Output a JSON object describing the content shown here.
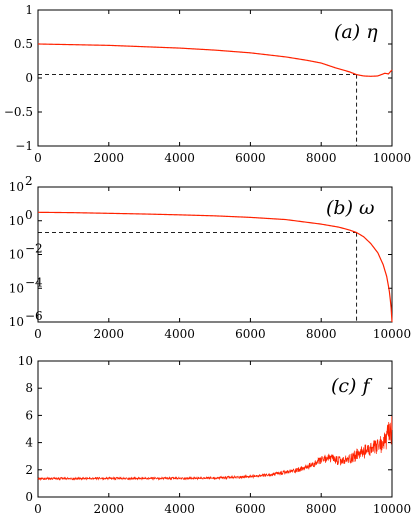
{
  "chart_data": [
    {
      "type": "line",
      "title": "(a) η",
      "xlabel": "",
      "ylabel": "",
      "xlim": [
        0,
        10000
      ],
      "ylim": [
        -1,
        1
      ],
      "xticks": [
        "0",
        "2000",
        "4000",
        "6000",
        "8000",
        "10000"
      ],
      "yticks": [
        "−1",
        "−0.5",
        "0",
        "0.5",
        "1"
      ],
      "line_color": "#ff2200",
      "series": [
        {
          "x": [
            0,
            1000,
            2000,
            3000,
            4000,
            5000,
            6000,
            7000,
            7600,
            8000,
            8400,
            8800,
            9000,
            9200,
            9400,
            9600,
            9700,
            9800,
            9900,
            10000
          ],
          "y": [
            0.5,
            0.49,
            0.48,
            0.46,
            0.44,
            0.41,
            0.37,
            0.31,
            0.26,
            0.22,
            0.15,
            0.09,
            0.05,
            0.03,
            0.025,
            0.03,
            0.05,
            0.07,
            0.06,
            0.12
          ]
        }
      ],
      "guide": {
        "x": 9000,
        "y": 0.05
      }
    },
    {
      "type": "line",
      "title": "(b) ω",
      "xlabel": "",
      "ylabel": "",
      "xlim": [
        0,
        10000
      ],
      "ylim": [
        -6,
        2
      ],
      "yscale": "log",
      "xticks": [
        "0",
        "2000",
        "4000",
        "6000",
        "8000",
        "10000"
      ],
      "yticks": [
        "10^-6",
        "10^-4",
        "10^-2",
        "10^0",
        "10^2"
      ],
      "line_color": "#ff2200",
      "series": [
        {
          "x": [
            0,
            1000,
            2000,
            3000,
            4000,
            5000,
            6000,
            7000,
            8000,
            8500,
            8800,
            9000,
            9200,
            9400,
            9600,
            9750,
            9850,
            9920,
            9970,
            10000
          ],
          "log10_y": [
            0.5,
            0.48,
            0.44,
            0.4,
            0.35,
            0.29,
            0.2,
            0.07,
            -0.2,
            -0.38,
            -0.55,
            -0.7,
            -0.95,
            -1.35,
            -1.9,
            -2.6,
            -3.3,
            -4.1,
            -5.0,
            -6.0
          ]
        }
      ],
      "guide": {
        "x": 9000,
        "log10_y": -0.7
      }
    },
    {
      "type": "line",
      "title": "(c) f",
      "xlabel": "",
      "ylabel": "",
      "xlim": [
        0,
        10000
      ],
      "ylim": [
        0,
        10
      ],
      "xticks": [
        "0",
        "2000",
        "4000",
        "6000",
        "8000",
        "10000"
      ],
      "yticks": [
        "0",
        "2",
        "4",
        "6",
        "8",
        "10"
      ],
      "line_color": "#ff2200",
      "series": [
        {
          "x": [
            0,
            1000,
            2000,
            3000,
            4000,
            5000,
            6000,
            6500,
            7000,
            7500,
            7800,
            8000,
            8200,
            8400,
            8600,
            8800,
            9000,
            9200,
            9400,
            9600,
            9800,
            10000
          ],
          "y": [
            1.35,
            1.35,
            1.36,
            1.36,
            1.37,
            1.38,
            1.5,
            1.6,
            1.8,
            2.1,
            2.4,
            2.7,
            2.9,
            2.7,
            2.6,
            2.8,
            3.1,
            3.3,
            3.5,
            3.7,
            4.1,
            4.8
          ],
          "noise_amplitude": [
            0.08,
            0.08,
            0.08,
            0.08,
            0.08,
            0.09,
            0.1,
            0.12,
            0.15,
            0.2,
            0.25,
            0.3,
            0.35,
            0.35,
            0.35,
            0.4,
            0.45,
            0.5,
            0.55,
            0.6,
            0.8,
            1.3
          ]
        }
      ]
    }
  ]
}
